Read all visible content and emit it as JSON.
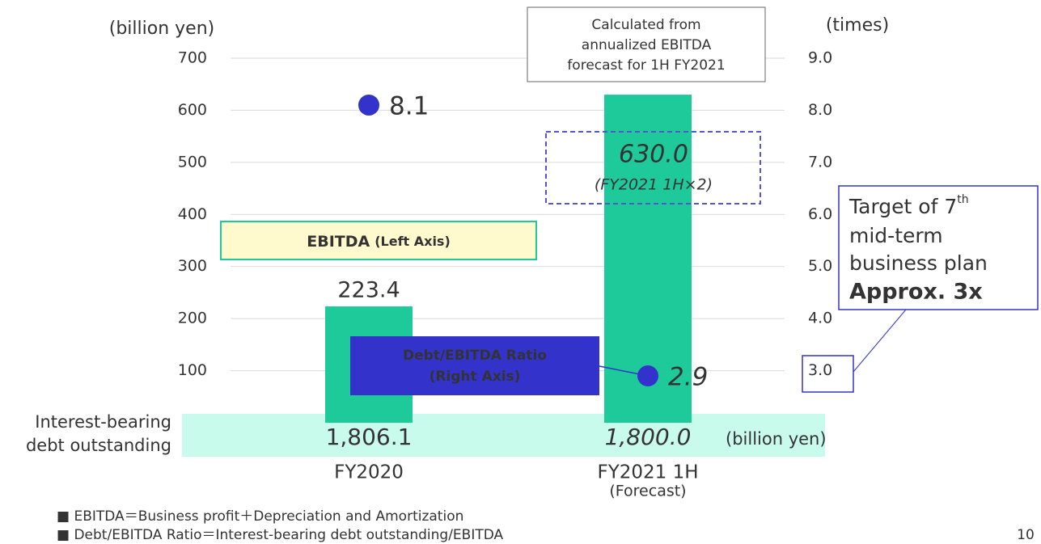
{
  "chart_data": {
    "type": "bar_dot",
    "categories": [
      "FY2020",
      "FY2021 1H"
    ],
    "forecast_note": "(Forecast)",
    "y_label": "(billion yen)",
    "y2_label": "(times)",
    "ylim": [
      0,
      700
    ],
    "yticks": [
      100,
      200,
      300,
      400,
      500,
      600,
      700
    ],
    "y2lim": [
      2,
      9
    ],
    "y2ticks": [
      {
        "value": 3,
        "label": "3.0"
      },
      {
        "value": 4,
        "label": "4.0"
      },
      {
        "value": 5,
        "label": "5.0"
      },
      {
        "value": 6,
        "label": "6.0"
      },
      {
        "value": 7,
        "label": "7.0"
      },
      {
        "value": 8,
        "label": "8.0"
      },
      {
        "value": 9,
        "label": "9.0"
      }
    ],
    "grid": true,
    "series": [
      {
        "name": "EBITDA",
        "name_note": "(Left Axis)",
        "color": "#1ec99a",
        "values": [
          223.4,
          630.0
        ],
        "value_labels": [
          "223.4",
          "630.0"
        ]
      },
      {
        "name": "Debt/EBITDA Ratio",
        "name_note": "(Right Axis)",
        "color": "#3333cc",
        "axis": "y2",
        "values": [
          8.1,
          2.9
        ]
      }
    ],
    "forecast_basis": "(FY2021 1H×2)",
    "callout": [
      "Calculated from",
      "annualized EBITDA",
      "forecast for 1H FY2021"
    ],
    "debt_label": [
      "Interest-bearing",
      "debt outstanding"
    ],
    "debt_values": [
      "1,806.1",
      "1,800.0"
    ],
    "debt_unit": "(billion yen)",
    "target": {
      "lines": [
        "Target of 7",
        "mid-term",
        "business plan"
      ],
      "superscript": "th",
      "emphasis": "Approx. 3x"
    },
    "footnotes": [
      "■ EBITDA＝Business profit＋Depreciation and Amortization",
      "■ Debt/EBITDA Ratio＝Interest-bearing debt outstanding/EBITDA"
    ],
    "page_number": "10"
  }
}
